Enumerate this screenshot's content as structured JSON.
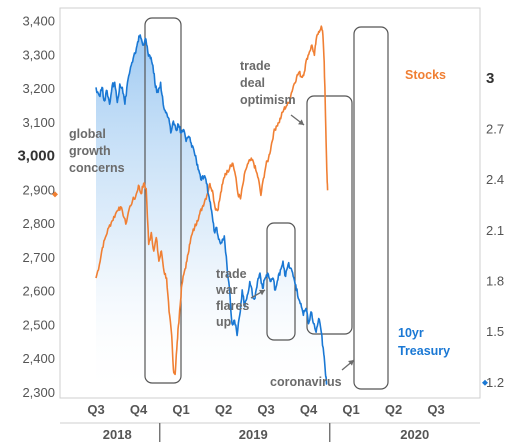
{
  "chart_data": {
    "type": "line",
    "x_axis": {
      "quarter_ticks": [
        "Q3",
        "Q4",
        "Q1",
        "Q2",
        "Q3",
        "Q4",
        "Q1",
        "Q2",
        "Q3"
      ],
      "years": [
        "2018",
        "2019",
        "2020"
      ]
    },
    "y_left": {
      "ticks": [
        "3,400",
        "3,300",
        "3,200",
        "3,100",
        "3,000",
        "2,900",
        "2,800",
        "2,700",
        "2,600",
        "2,500",
        "2,400",
        "2,300"
      ],
      "highlight": "3,000",
      "ylim": [
        2285,
        3440
      ]
    },
    "y_right": {
      "ticks": [
        "3",
        "2.7",
        "2.4",
        "2.1",
        "1.8",
        "1.5",
        "1.2"
      ],
      "ylim": [
        1.11,
        3.42
      ]
    },
    "series": [
      {
        "name": "Stocks",
        "axis": "left",
        "color": "#f07f33",
        "points": [
          [
            0.0,
            2640
          ],
          [
            0.08,
            2680
          ],
          [
            0.15,
            2730
          ],
          [
            0.22,
            2760
          ],
          [
            0.3,
            2790
          ],
          [
            0.38,
            2810
          ],
          [
            0.46,
            2830
          ],
          [
            0.54,
            2850
          ],
          [
            0.62,
            2840
          ],
          [
            0.7,
            2800
          ],
          [
            0.78,
            2845
          ],
          [
            0.86,
            2870
          ],
          [
            0.93,
            2880
          ],
          [
            1.0,
            2915
          ],
          [
            1.06,
            2890
          ],
          [
            1.12,
            2920
          ],
          [
            1.18,
            2905
          ],
          [
            1.24,
            2740
          ],
          [
            1.3,
            2775
          ],
          [
            1.36,
            2720
          ],
          [
            1.42,
            2760
          ],
          [
            1.48,
            2690
          ],
          [
            1.54,
            2720
          ],
          [
            1.6,
            2660
          ],
          [
            1.66,
            2640
          ],
          [
            1.72,
            2540
          ],
          [
            1.78,
            2470
          ],
          [
            1.82,
            2370
          ],
          [
            1.86,
            2355
          ],
          [
            1.9,
            2430
          ],
          [
            1.94,
            2500
          ],
          [
            1.98,
            2560
          ],
          [
            2.02,
            2620
          ],
          [
            2.08,
            2660
          ],
          [
            2.14,
            2690
          ],
          [
            2.2,
            2740
          ],
          [
            2.26,
            2770
          ],
          [
            2.32,
            2790
          ],
          [
            2.38,
            2810
          ],
          [
            2.44,
            2830
          ],
          [
            2.5,
            2850
          ],
          [
            2.56,
            2870
          ],
          [
            2.62,
            2890
          ],
          [
            2.68,
            2920
          ],
          [
            2.74,
            2900
          ],
          [
            2.8,
            2850
          ],
          [
            2.86,
            2840
          ],
          [
            2.92,
            2880
          ],
          [
            2.98,
            2920
          ],
          [
            3.04,
            2950
          ],
          [
            3.1,
            2955
          ],
          [
            3.16,
            2975
          ],
          [
            3.22,
            2980
          ],
          [
            3.28,
            2945
          ],
          [
            3.34,
            2890
          ],
          [
            3.4,
            2875
          ],
          [
            3.46,
            2920
          ],
          [
            3.52,
            2960
          ],
          [
            3.58,
            2980
          ],
          [
            3.64,
            2990
          ],
          [
            3.7,
            2985
          ],
          [
            3.76,
            2960
          ],
          [
            3.82,
            2935
          ],
          [
            3.88,
            2885
          ],
          [
            3.94,
            2935
          ],
          [
            4.0,
            2975
          ],
          [
            4.06,
            2995
          ],
          [
            4.12,
            3030
          ],
          [
            4.18,
            3070
          ],
          [
            4.24,
            3090
          ],
          [
            4.3,
            3100
          ],
          [
            4.36,
            3120
          ],
          [
            4.42,
            3140
          ],
          [
            4.48,
            3150
          ],
          [
            4.54,
            3160
          ],
          [
            4.6,
            3190
          ],
          [
            4.66,
            3215
          ],
          [
            4.72,
            3235
          ],
          [
            4.78,
            3250
          ],
          [
            4.84,
            3235
          ],
          [
            4.9,
            3250
          ],
          [
            4.96,
            3290
          ],
          [
            5.02,
            3310
          ],
          [
            5.08,
            3330
          ],
          [
            5.14,
            3300
          ],
          [
            5.18,
            3345
          ],
          [
            5.24,
            3370
          ],
          [
            5.3,
            3386
          ],
          [
            5.34,
            3360
          ],
          [
            5.37,
            3280
          ],
          [
            5.4,
            3120
          ],
          [
            5.43,
            2960
          ],
          [
            5.45,
            2900
          ]
        ]
      },
      {
        "name": "10yr Treasury",
        "axis": "right",
        "color": "#1a78d4",
        "points": [
          [
            0.0,
            2.95
          ],
          [
            0.08,
            2.9
          ],
          [
            0.14,
            2.95
          ],
          [
            0.2,
            2.87
          ],
          [
            0.26,
            2.93
          ],
          [
            0.32,
            2.85
          ],
          [
            0.38,
            2.96
          ],
          [
            0.44,
            2.98
          ],
          [
            0.5,
            2.86
          ],
          [
            0.56,
            2.97
          ],
          [
            0.62,
            2.95
          ],
          [
            0.68,
            2.85
          ],
          [
            0.74,
            2.98
          ],
          [
            0.8,
            3.05
          ],
          [
            0.86,
            3.1
          ],
          [
            0.92,
            3.15
          ],
          [
            0.98,
            3.22
          ],
          [
            1.04,
            3.26
          ],
          [
            1.1,
            3.2
          ],
          [
            1.16,
            3.24
          ],
          [
            1.22,
            3.16
          ],
          [
            1.28,
            3.12
          ],
          [
            1.34,
            3.08
          ],
          [
            1.4,
            2.95
          ],
          [
            1.46,
            2.92
          ],
          [
            1.52,
            2.98
          ],
          [
            1.58,
            2.85
          ],
          [
            1.64,
            2.8
          ],
          [
            1.7,
            2.77
          ],
          [
            1.76,
            2.68
          ],
          [
            1.82,
            2.75
          ],
          [
            1.88,
            2.7
          ],
          [
            1.94,
            2.73
          ],
          [
            2.0,
            2.68
          ],
          [
            2.06,
            2.7
          ],
          [
            2.12,
            2.63
          ],
          [
            2.18,
            2.66
          ],
          [
            2.24,
            2.62
          ],
          [
            2.3,
            2.58
          ],
          [
            2.36,
            2.52
          ],
          [
            2.42,
            2.46
          ],
          [
            2.48,
            2.4
          ],
          [
            2.54,
            2.42
          ],
          [
            2.6,
            2.38
          ],
          [
            2.66,
            2.3
          ],
          [
            2.72,
            2.22
          ],
          [
            2.78,
            2.1
          ],
          [
            2.84,
            2.12
          ],
          [
            2.9,
            2.05
          ],
          [
            2.96,
            2.03
          ],
          [
            3.02,
            2.07
          ],
          [
            3.08,
            1.9
          ],
          [
            3.14,
            1.76
          ],
          [
            3.2,
            1.55
          ],
          [
            3.26,
            1.57
          ],
          [
            3.32,
            1.48
          ],
          [
            3.38,
            1.6
          ],
          [
            3.44,
            1.75
          ],
          [
            3.5,
            1.65
          ],
          [
            3.56,
            1.72
          ],
          [
            3.62,
            1.8
          ],
          [
            3.68,
            1.72
          ],
          [
            3.74,
            1.7
          ],
          [
            3.8,
            1.8
          ],
          [
            3.86,
            1.85
          ],
          [
            3.92,
            1.76
          ],
          [
            3.98,
            1.82
          ],
          [
            4.04,
            1.85
          ],
          [
            4.1,
            1.8
          ],
          [
            4.16,
            1.82
          ],
          [
            4.22,
            1.75
          ],
          [
            4.28,
            1.81
          ],
          [
            4.34,
            1.87
          ],
          [
            4.4,
            1.92
          ],
          [
            4.46,
            1.83
          ],
          [
            4.52,
            1.9
          ],
          [
            4.58,
            1.88
          ],
          [
            4.64,
            1.83
          ],
          [
            4.7,
            1.78
          ],
          [
            4.76,
            1.7
          ],
          [
            4.82,
            1.67
          ],
          [
            4.88,
            1.6
          ],
          [
            4.94,
            1.64
          ],
          [
            5.0,
            1.55
          ],
          [
            5.06,
            1.62
          ],
          [
            5.12,
            1.55
          ],
          [
            5.18,
            1.5
          ],
          [
            5.24,
            1.58
          ],
          [
            5.3,
            1.5
          ],
          [
            5.36,
            1.37
          ],
          [
            5.4,
            1.25
          ],
          [
            5.43,
            1.19
          ]
        ]
      }
    ],
    "annotations": [
      {
        "lines": [
          "global",
          "growth",
          "concerns"
        ]
      },
      {
        "lines": [
          "trade",
          "deal",
          "optimism"
        ]
      },
      {
        "lines": [
          "trade",
          "war",
          "flares",
          "up"
        ]
      },
      {
        "lines": [
          "coronavirus"
        ]
      }
    ],
    "grid": false
  }
}
